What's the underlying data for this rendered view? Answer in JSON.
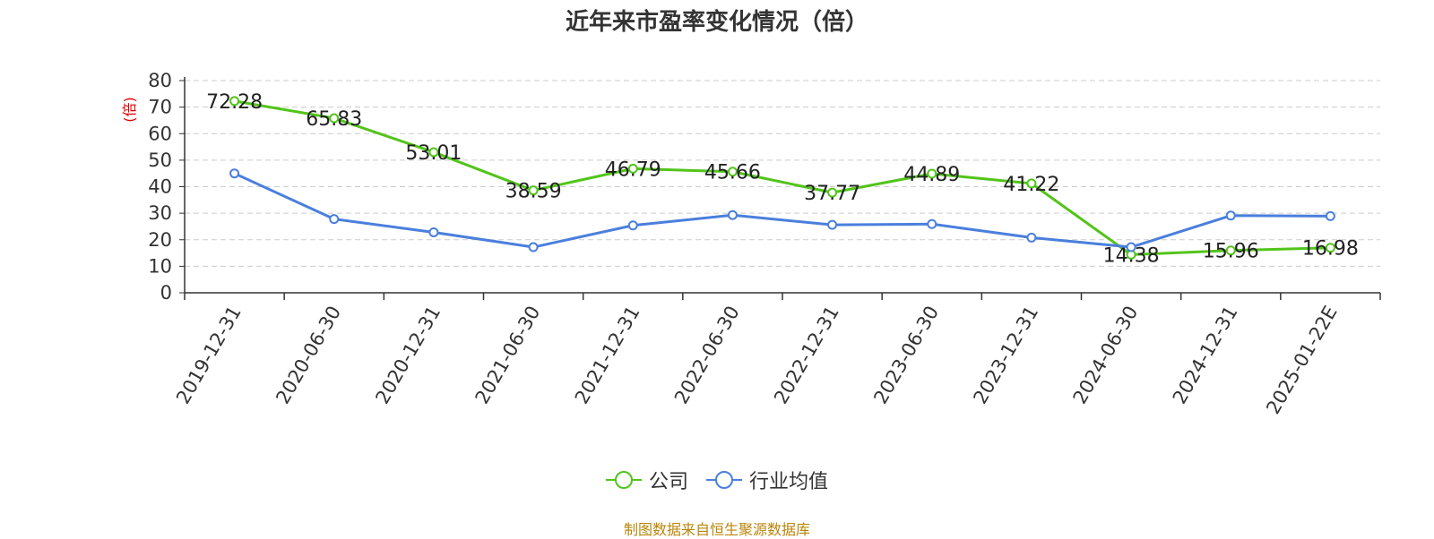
{
  "title": "近年来市盈率变化情况（倍）",
  "footer": "制图数据来自恒生聚源数据库",
  "colors": {
    "company": "#52c41a",
    "industry": "#4a7fdd",
    "unit": "#e00000",
    "footer": "#b8860b"
  },
  "chart_data": {
    "type": "line",
    "title": "近年来市盈率变化情况（倍）",
    "ylabel": "(倍)",
    "xlabel": "",
    "ylim": [
      0,
      80
    ],
    "yticks": [
      0,
      10,
      20,
      30,
      40,
      50,
      60,
      70,
      80
    ],
    "grid": true,
    "legend_position": "bottom",
    "categories": [
      "2019-12-31",
      "2020-06-30",
      "2020-12-31",
      "2021-06-30",
      "2021-12-31",
      "2022-06-30",
      "2022-12-31",
      "2023-06-30",
      "2023-12-31",
      "2024-06-30",
      "2024-12-31",
      "2025-01-22E"
    ],
    "series": [
      {
        "name": "公司",
        "values": [
          72.28,
          65.83,
          53.01,
          38.59,
          46.79,
          45.66,
          37.77,
          44.89,
          41.22,
          14.38,
          15.96,
          16.98
        ],
        "data_labels": [
          "72.28",
          "65.83",
          "53.01",
          "38.59",
          "46.79",
          "45.66",
          "37.77",
          "44.89",
          "41.22",
          "14.38",
          "15.96",
          "16.98"
        ]
      },
      {
        "name": "行业均值",
        "values": [
          45.0,
          27.8,
          22.8,
          17.2,
          25.4,
          29.3,
          25.6,
          25.9,
          20.8,
          17.2,
          29.1,
          28.9
        ]
      }
    ]
  }
}
